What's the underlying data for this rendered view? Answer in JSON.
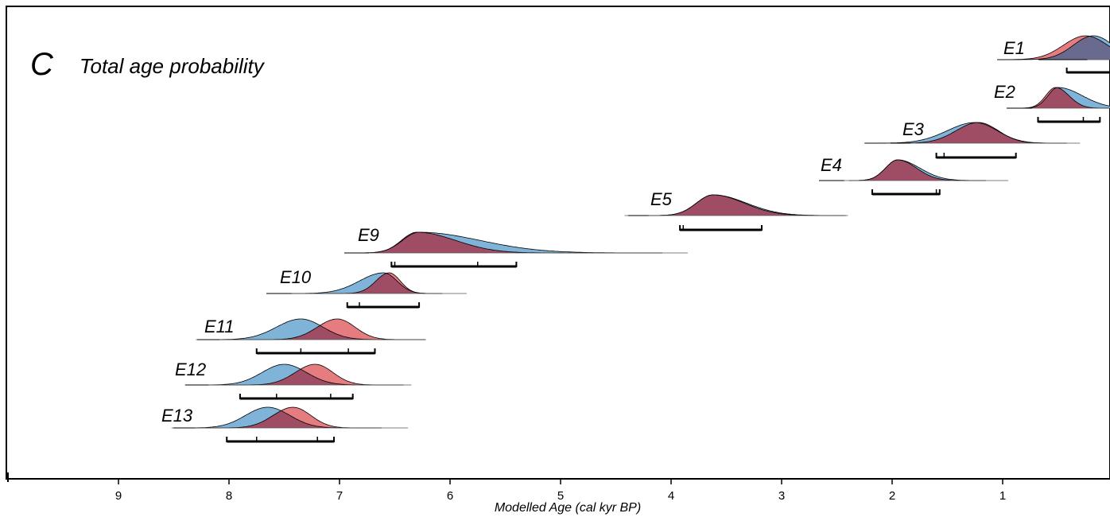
{
  "panel": {
    "letter": "C",
    "title": "Total age probability"
  },
  "chart_data": {
    "type": "area",
    "title": "Total age probability",
    "xlabel": "Modelled Age (cal kyr BP)",
    "xlim": [
      10,
      0
    ],
    "x_ticks": [
      "9",
      "8",
      "7",
      "6",
      "5",
      "4",
      "3",
      "2",
      "1"
    ],
    "grid": false,
    "colors": {
      "blue": "#7fb3d8",
      "red": "#e57c80",
      "overlap": "#9e4d64",
      "overlap_dark": "#6a6a8e"
    },
    "events": [
      {
        "name": "E1",
        "blue": {
          "peak": 0.18,
          "sd_left": 0.18,
          "sd_right": 0.18
        },
        "red": {
          "peak": 0.25,
          "sd_left": 0.2,
          "sd_right": 0.2
        },
        "line_range": [
          0.45,
          0.0
        ],
        "range_95": [
          0.42,
          0.0
        ],
        "mid_marks": []
      },
      {
        "name": "E2",
        "blue": {
          "peak": 0.5,
          "sd_left": 0.09,
          "sd_right": 0.22
        },
        "red": {
          "peak": 0.52,
          "sd_left": 0.09,
          "sd_right": 0.12
        },
        "line_range": [
          0.95,
          0.0
        ],
        "range_95": [
          0.68,
          0.12
        ],
        "mid_marks": [
          0.27
        ]
      },
      {
        "name": "E3",
        "blue": {
          "peak": 1.25,
          "sd_left": 0.25,
          "sd_right": 0.2
        },
        "red": {
          "peak": 1.22,
          "sd_left": 0.2,
          "sd_right": 0.18
        },
        "line_range": [
          2.05,
          0.3
        ],
        "range_95": [
          1.6,
          0.88
        ],
        "mid_marks": [
          1.53
        ]
      },
      {
        "name": "E4",
        "blue": {
          "peak": 1.95,
          "sd_left": 0.11,
          "sd_right": 0.2
        },
        "red": {
          "peak": 1.95,
          "sd_left": 0.11,
          "sd_right": 0.17
        },
        "line_range": [
          2.65,
          0.95
        ],
        "range_95": [
          2.18,
          1.57
        ],
        "mid_marks": [
          1.6
        ]
      },
      {
        "name": "E5",
        "blue": {
          "peak": 3.62,
          "sd_left": 0.15,
          "sd_right": 0.3
        },
        "red": {
          "peak": 3.62,
          "sd_left": 0.15,
          "sd_right": 0.28
        },
        "line_range": [
          4.42,
          2.4
        ],
        "range_95": [
          3.92,
          3.18
        ],
        "mid_marks": [
          3.89
        ]
      },
      {
        "name": "E9",
        "blue": {
          "peak": 6.28,
          "sd_left": 0.15,
          "sd_right": 0.55
        },
        "red": {
          "peak": 6.3,
          "sd_left": 0.14,
          "sd_right": 0.35
        },
        "line_range": [
          6.95,
          3.85
        ],
        "range_95": [
          6.53,
          5.4
        ],
        "mid_marks": [
          6.5,
          5.75
        ]
      },
      {
        "name": "E10",
        "blue": {
          "peak": 6.6,
          "sd_left": 0.22,
          "sd_right": 0.12
        },
        "red": {
          "peak": 6.55,
          "sd_left": 0.12,
          "sd_right": 0.1
        },
        "line_range": [
          7.65,
          5.85
        ],
        "range_95": [
          6.93,
          6.28
        ],
        "mid_marks": [
          6.82
        ]
      },
      {
        "name": "E11",
        "blue": {
          "peak": 7.35,
          "sd_left": 0.22,
          "sd_right": 0.2
        },
        "red": {
          "peak": 7.02,
          "sd_left": 0.18,
          "sd_right": 0.16
        },
        "line_range": [
          8.3,
          6.22
        ],
        "range_95": [
          7.75,
          6.68
        ],
        "mid_marks": [
          7.35,
          6.92
        ]
      },
      {
        "name": "E12",
        "blue": {
          "peak": 7.5,
          "sd_left": 0.2,
          "sd_right": 0.2
        },
        "red": {
          "peak": 7.22,
          "sd_left": 0.18,
          "sd_right": 0.16
        },
        "line_range": [
          8.4,
          6.35
        ],
        "range_95": [
          7.9,
          6.88
        ],
        "mid_marks": [
          7.57,
          7.08
        ]
      },
      {
        "name": "E13",
        "blue": {
          "peak": 7.65,
          "sd_left": 0.2,
          "sd_right": 0.2
        },
        "red": {
          "peak": 7.42,
          "sd_left": 0.18,
          "sd_right": 0.16
        },
        "line_range": [
          8.52,
          6.38
        ],
        "range_95": [
          8.02,
          7.05
        ],
        "mid_marks": [
          7.75,
          7.2
        ]
      }
    ]
  }
}
